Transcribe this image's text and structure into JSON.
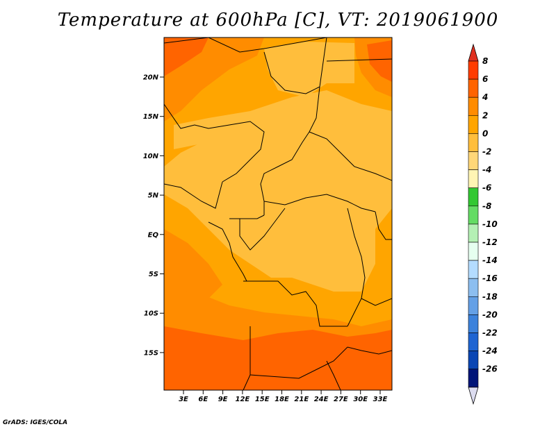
{
  "title": "Temperature at 600hPa [C], VT: 2019061900",
  "credit": "GrADS: IGES/COLA",
  "lat_labels": [
    "20N",
    "15N",
    "10N",
    "5N",
    "EQ",
    "5S",
    "10S",
    "15S"
  ],
  "lon_labels": [
    "3E",
    "6E",
    "9E",
    "12E",
    "15E",
    "18E",
    "21E",
    "24E",
    "27E",
    "30E",
    "33E"
  ],
  "colorbar": {
    "labels": [
      "8",
      "6",
      "4",
      "2",
      "0",
      "-2",
      "-4",
      "-6",
      "-8",
      "-10",
      "-12",
      "-14",
      "-16",
      "-18",
      "-20",
      "-22",
      "-24",
      "-26"
    ],
    "colors": [
      "#ff3c00",
      "#ff6400",
      "#ff8c00",
      "#ffa500",
      "#ffbe3c",
      "#ffd778",
      "#fff5b4",
      "#32c832",
      "#64dc64",
      "#b4f0b4",
      "#e6fff0",
      "#b4dcff",
      "#8cbef0",
      "#64a0e6",
      "#3c82dc",
      "#1e64d2",
      "#0a46b4",
      "#001478",
      "#dcdcff"
    ],
    "top_color": "#e03020",
    "bottom_color": "#dcdcf0"
  }
}
